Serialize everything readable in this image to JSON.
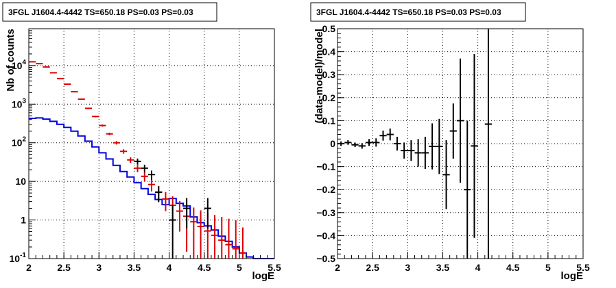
{
  "chart_data": [
    {
      "type": "line",
      "title": "3FGL J1604.4-4442 TS=650.18 PS=0.03 PS=0.03",
      "xlabel": "logE",
      "ylabel": "Nb of counts",
      "xlim": [
        2,
        5.5
      ],
      "ylim": [
        0.1,
        90000
      ],
      "yscale": "log",
      "grid": true,
      "x_ticks": [
        "2",
        "2.5",
        "3",
        "3.5",
        "4",
        "4.5",
        "5",
        "5.5"
      ],
      "y_ticks": [
        "10^-1",
        "1",
        "10",
        "10^2",
        "10^3",
        "10^4"
      ],
      "y_tick_labels": [
        {
          "text": "10",
          "sup": "-1"
        },
        {
          "text": "1",
          "sup": ""
        },
        {
          "text": "10",
          "sup": ""
        },
        {
          "text": "10",
          "sup": "2"
        },
        {
          "text": "10",
          "sup": "3"
        },
        {
          "text": "10",
          "sup": "4"
        }
      ],
      "bin_edges": [
        2.0,
        2.1,
        2.2,
        2.3,
        2.4,
        2.5,
        2.6,
        2.7,
        2.8,
        2.9,
        3.0,
        3.1,
        3.2,
        3.3,
        3.4,
        3.5,
        3.6,
        3.7,
        3.8,
        3.9,
        4.0,
        4.1,
        4.2,
        4.3,
        4.4,
        4.5,
        4.6,
        4.7,
        4.8,
        4.9,
        5.0,
        5.1,
        5.2,
        5.3,
        5.4,
        5.5
      ],
      "series": [
        {
          "role": "model-red",
          "color": "#dd0000",
          "x": [
            2.05,
            2.15,
            2.25,
            2.35,
            2.45,
            2.55,
            2.65,
            2.75,
            2.85,
            2.95,
            3.05,
            3.15,
            3.25,
            3.35,
            3.45,
            3.55,
            3.65,
            3.75,
            3.85,
            3.95,
            4.05,
            4.15,
            4.25,
            4.35,
            4.45,
            4.55,
            4.65,
            4.75,
            4.85,
            4.95,
            5.05
          ],
          "y": [
            12500,
            11200,
            9200,
            6500,
            4600,
            3300,
            2100,
            1350,
            780,
            480,
            280,
            170,
            100,
            60,
            36,
            22,
            13.5,
            8.3,
            5.3,
            3.5,
            2.4,
            1.7,
            1.25,
            0.9,
            0.68,
            0.52,
            0.4,
            0.3,
            0.23,
            0.18,
            0.14
          ],
          "yerr_low": [
            200,
            180,
            150,
            110,
            90,
            70,
            55,
            40,
            30,
            22,
            17,
            13,
            10,
            7.8,
            6,
            4.6,
            3.6,
            2.8,
            2.3,
            1.8,
            1.5,
            1.2,
            1.1,
            0.9,
            0.68,
            0.52,
            0.4,
            0.3,
            0.23,
            0.18,
            0.14
          ],
          "yerr_high": [
            200,
            180,
            150,
            110,
            90,
            70,
            55,
            40,
            30,
            22,
            17,
            13,
            10,
            7.8,
            6,
            4.6,
            3.6,
            2.8,
            2.3,
            1.8,
            1.7,
            1.4,
            1.3,
            1.2,
            1.1,
            1.0,
            0.95,
            0.9,
            0.85,
            0.8,
            0.5
          ]
        },
        {
          "role": "model-blue",
          "color": "#0000dd",
          "values": [
            430,
            440,
            410,
            360,
            300,
            250,
            200,
            150,
            110,
            78,
            55,
            38,
            26,
            18,
            13,
            9.2,
            6.5,
            4.6,
            3.4,
            2.5,
            3.6,
            2.7,
            2.3,
            1.2,
            0.85,
            0.7,
            0.55,
            0.38,
            0.28,
            0.2,
            0.14,
            0.11,
            0.1,
            0.1,
            0.1
          ]
        },
        {
          "role": "data",
          "color": "#000000",
          "x": [
            3.55,
            3.65,
            3.75,
            3.85,
            4.05,
            4.25,
            4.55
          ],
          "y": [
            33,
            22,
            15,
            5.2,
            1.0,
            2.0,
            2.0
          ],
          "yerr_low": [
            6,
            5,
            4,
            2.3,
            0.9,
            1.4,
            1.4
          ],
          "yerr_high": [
            6,
            5,
            4,
            2.3,
            1.4,
            1.7,
            1.7
          ]
        }
      ]
    },
    {
      "type": "scatter",
      "title": "3FGL J1604.4-4442 TS=650.18 PS=0.03 PS=0.03",
      "xlabel": "logE",
      "ylabel": "(data-model)/model",
      "xlim": [
        2,
        5.5
      ],
      "ylim": [
        -0.5,
        0.5
      ],
      "grid": true,
      "x_ticks": [
        "2",
        "2.5",
        "3",
        "3.5",
        "4",
        "4.5",
        "5",
        "5.5"
      ],
      "y_ticks": [
        "−0.5",
        "−0.4",
        "−0.3",
        "−0.2",
        "−0.1",
        "0",
        "0.1",
        "0.2",
        "0.3",
        "0.4",
        "0.5"
      ],
      "series": [
        {
          "color": "#000000",
          "x": [
            2.05,
            2.15,
            2.25,
            2.35,
            2.45,
            2.55,
            2.65,
            2.75,
            2.85,
            2.95,
            3.05,
            3.15,
            3.25,
            3.35,
            3.45,
            3.55,
            3.65,
            3.75,
            3.85,
            3.95,
            4.15
          ],
          "y": [
            0.0,
            0.005,
            -0.005,
            -0.01,
            0.005,
            0.005,
            0.035,
            0.04,
            0.0,
            -0.03,
            -0.03,
            -0.04,
            -0.04,
            -0.012,
            -0.012,
            -0.135,
            0.055,
            0.1,
            -0.2,
            -0.01,
            0.085
          ],
          "yerr": [
            0.01,
            0.01,
            0.01,
            0.012,
            0.015,
            0.018,
            0.022,
            0.026,
            0.03,
            0.035,
            0.045,
            0.06,
            0.07,
            0.1,
            0.12,
            0.15,
            0.12,
            0.27,
            0.3,
            0.4,
            0.6
          ]
        }
      ]
    }
  ]
}
